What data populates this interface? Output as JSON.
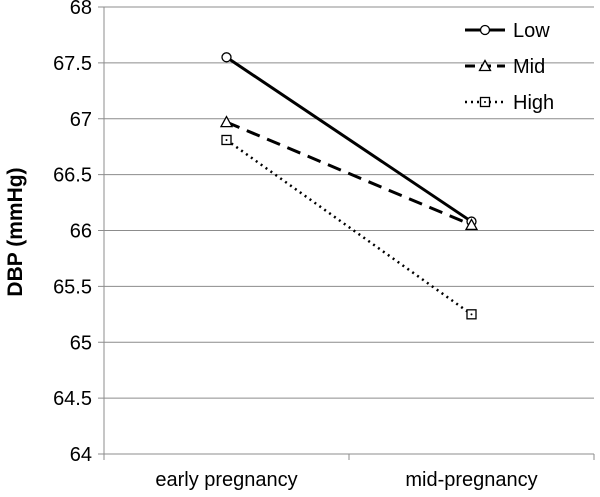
{
  "chart_data": {
    "type": "line",
    "title": "",
    "xlabel": "",
    "ylabel": "DBP (mmHg)",
    "categories": [
      "early pregnancy",
      "mid-pregnancy"
    ],
    "ylim": [
      64,
      68
    ],
    "ytick_step": 0.5,
    "yticks": [
      "64",
      "64.5",
      "65",
      "65.5",
      "66",
      "66.5",
      "67",
      "67.5",
      "68"
    ],
    "grid": "horizontal",
    "legend_position": "top-right",
    "series": [
      {
        "name": "Low",
        "values": [
          67.55,
          66.08
        ],
        "line_style": "solid",
        "marker": "circle"
      },
      {
        "name": "Mid",
        "values": [
          66.97,
          66.05
        ],
        "line_style": "dashed",
        "marker": "triangle"
      },
      {
        "name": "High",
        "values": [
          66.81,
          65.25
        ],
        "line_style": "dotted",
        "marker": "square"
      }
    ]
  }
}
